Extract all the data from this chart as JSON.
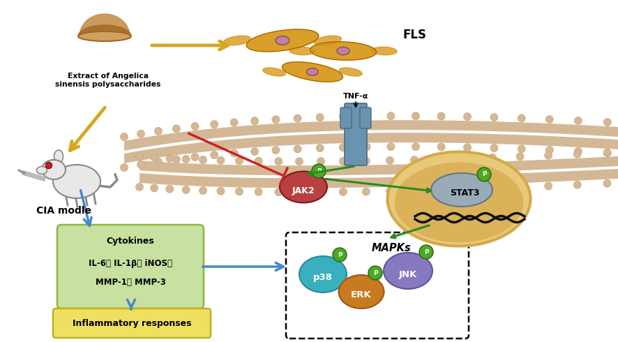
{
  "fig_width": 8.86,
  "fig_height": 4.9,
  "bg_color": "#ffffff",
  "labels": {
    "fls": "FLS",
    "extract": "Extract of Angelica\nsinensis polysaccharides",
    "cia": "CIA modle",
    "tnf": "TNF-α",
    "jak2": "JAK2",
    "stat3": "STAT3",
    "mapks": "MAPKs",
    "p38": "p38",
    "erk": "ERK",
    "jnk": "JNK",
    "p_label": "P",
    "cytokines_title": "Cytokines",
    "cytokines_line1": "IL-6、 IL-1β、 iNOS、",
    "cytokines_line2": "MMP-1、 MMP-3",
    "inflam": "Inflammatory responses"
  },
  "colors": {
    "membrane_tan": "#d4b896",
    "membrane_dark": "#c9a87a",
    "receptor_blue": "#6a93b0",
    "jak2_red": "#b94040",
    "stat3_gray": "#9aabb8",
    "nucleus_yellow": "#e8c97a",
    "nucleus_dark": "#d4a94a",
    "nucleus_inner": "#c8902a",
    "p38_teal": "#3aafbf",
    "erk_orange": "#c87a20",
    "jnk_purple": "#8878c0",
    "phospho_green": "#4aaa20",
    "phospho_dark": "#2a6010",
    "green_arrow": "#2a8a20",
    "red_inhibit": "#cc2222",
    "blue_arrow": "#4488cc",
    "yellow_arrow": "#d4a820",
    "cytokine_box": "#c8e0a0",
    "cytokine_border": "#88b840",
    "inflam_box": "#f0e060",
    "inflam_border": "#c0b020",
    "dna_color": "#111111",
    "white": "#ffffff",
    "black": "#000000",
    "cell_orange": "#d4920a",
    "cell_dark": "#a06008",
    "cell_nucleus": "#c080a0",
    "rat_fill": "#e8e8e8",
    "rat_edge": "#888888",
    "red_eye": "#cc2020",
    "bowl_brown": "#c89050",
    "bowl_rim": "#d0a060"
  }
}
